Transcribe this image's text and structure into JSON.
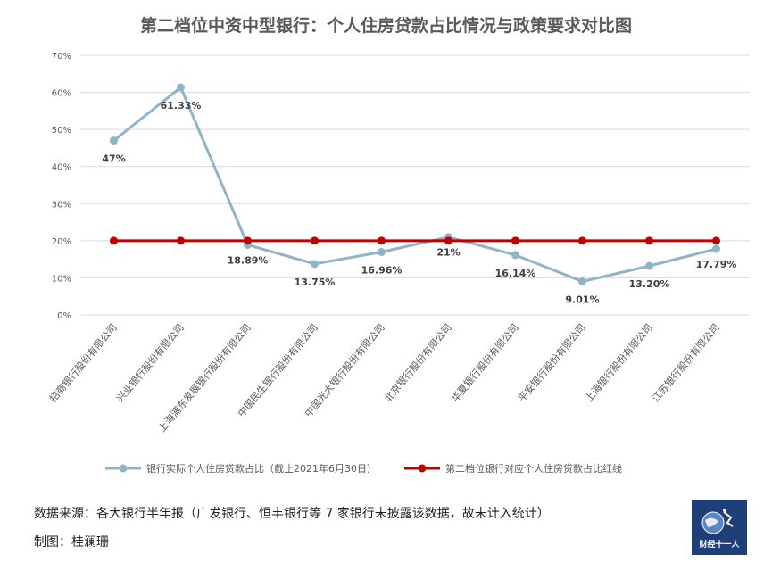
{
  "title": "第二档位中资中型银行：个人住房贷款占比情况与政策要求对比图",
  "chart_data": {
    "type": "line",
    "title": "第二档位中资中型银行：个人住房贷款占比情况与政策要求对比图",
    "categories": [
      "招商银行股份有限公司",
      "兴业银行股份有限公司",
      "上海浦东发展银行股份有限公司",
      "中国民生银行股份有限公司",
      "中国光大银行股份有限公司",
      "北京银行股份有限公司",
      "华夏银行股份有限公司",
      "平安银行股份有限公司",
      "上海银行股份有限公司",
      "江苏银行股份有限公司"
    ],
    "series": [
      {
        "name": "银行实际个人住房贷款占比（截止2021年6月30日）",
        "color": "#8eb4c8",
        "values": [
          47,
          61.33,
          18.89,
          13.75,
          16.96,
          21,
          16.14,
          9.01,
          13.2,
          17.79
        ],
        "labels": [
          "47%",
          "61.33%",
          "18.89%",
          "13.75%",
          "16.96%",
          "21%",
          "16.14%",
          "9.01%",
          "13.20%",
          "17.79%"
        ]
      },
      {
        "name": "第二档位银行对应个人住房贷款占比红线",
        "color": "#c00000",
        "values": [
          20,
          20,
          20,
          20,
          20,
          20,
          20,
          20,
          20,
          20
        ]
      }
    ],
    "yticks": [
      "0%",
      "10%",
      "20%",
      "30%",
      "40%",
      "50%",
      "60%",
      "70%"
    ],
    "ylim": [
      0,
      70
    ],
    "xlabel": "",
    "ylabel": "",
    "grid": true,
    "legend": "bottom"
  },
  "source_text": "数据来源：各大银行半年报（广发银行、恒丰银行等 7 家银行未披露该数据，故未计入统计）",
  "credit_text": "制图：桂澜珊",
  "logo": {
    "text": "财经十一人",
    "icon": "globe-runner-icon",
    "bg": "#1f3f7a"
  }
}
